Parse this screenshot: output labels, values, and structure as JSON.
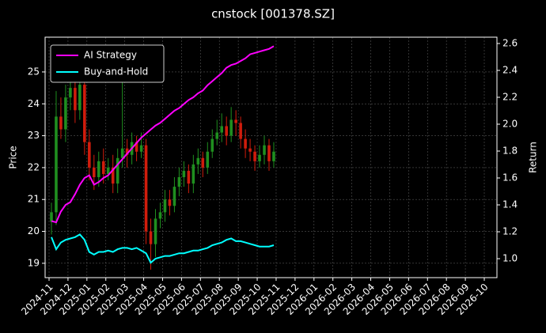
{
  "chart_data": {
    "type": "candlestick",
    "title": "cnstock [001378.SZ]",
    "ylabel": "Price",
    "y2label": "Return",
    "x": [
      "2024-11",
      "2024-12",
      "2025-01",
      "2025-02",
      "2025-03",
      "2025-04",
      "2025-05",
      "2025-06",
      "2025-07",
      "2025-08",
      "2025-09",
      "2025-10"
    ],
    "xlim": [
      "2024-11",
      "2026-10"
    ],
    "xticks": [
      "2024-11",
      "2024-12",
      "2025-01",
      "2025-02",
      "2025-03",
      "2025-04",
      "2025-05",
      "2025-06",
      "2025-07",
      "2025-08",
      "2025-09",
      "2025-10",
      "2025-11",
      "2025-12",
      "2026-01",
      "2026-02",
      "2026-03",
      "2026-04",
      "2026-05",
      "2026-06",
      "2026-07",
      "2026-08",
      "2026-09",
      "2026-10"
    ],
    "ylim": [
      18.55,
      26.09
    ],
    "yticks": [
      19,
      20,
      21,
      22,
      23,
      24,
      25
    ],
    "y2lim": [
      0.859,
      2.647
    ],
    "y2ticks": [
      {
        "value": 1,
        "label": "1.0"
      },
      1.2,
      1.4,
      1.6,
      1.8,
      {
        "value": 2,
        "label": "2.0"
      },
      2.2,
      2.4,
      2.6
    ],
    "grid": true,
    "legend": "upper left",
    "candles": {
      "up_color": "#1f8f1f",
      "down_color": "#d01c0c",
      "open": [
        [
          20.3,
          20.6,
          23.6,
          23.2
        ],
        [
          24.2,
          24.5,
          23.8,
          24.6
        ],
        [
          22.8,
          22.0,
          21.7,
          22.2
        ],
        [
          21.8,
          22.0,
          21.5,
          22.3
        ],
        [
          22.6,
          22.4,
          22.8,
          22.5
        ],
        [
          22.7,
          20.0,
          19.6,
          20.4
        ],
        [
          20.6,
          21.0,
          20.8,
          21.4
        ],
        [
          21.7,
          21.9,
          21.5,
          22.1
        ],
        [
          22.3,
          22.0,
          22.5,
          22.9
        ],
        [
          23.1,
          23.3,
          23.0,
          23.5
        ],
        [
          23.4,
          22.9,
          22.6,
          22.5
        ],
        [
          22.2,
          22.4,
          22.7,
          22.2
        ]
      ],
      "high": [
        [
          20.9,
          24.4,
          24.2,
          24.6
        ],
        [
          25.3,
          25.0,
          25.3,
          24.8
        ],
        [
          23.2,
          22.4,
          22.5,
          22.6
        ],
        [
          22.3,
          22.4,
          22.6,
          25.2
        ],
        [
          22.9,
          23.1,
          23.0,
          23.1
        ],
        [
          22.9,
          20.4,
          20.7,
          20.9
        ],
        [
          21.3,
          21.3,
          21.7,
          22.0
        ],
        [
          22.2,
          22.1,
          22.4,
          22.6
        ],
        [
          22.5,
          22.8,
          23.2,
          23.5
        ],
        [
          23.7,
          23.6,
          23.9,
          23.8
        ],
        [
          23.6,
          23.2,
          22.9,
          22.7
        ],
        [
          22.7,
          23.0,
          22.9,
          22.8
        ]
      ],
      "low": [
        [
          19.9,
          20.2,
          22.9,
          22.8
        ],
        [
          23.8,
          23.4,
          23.5,
          22.4
        ],
        [
          21.6,
          21.3,
          21.4,
          21.5
        ],
        [
          21.6,
          21.2,
          21.2,
          22.0
        ],
        [
          22.0,
          22.1,
          22.2,
          22.3
        ],
        [
          19.6,
          18.8,
          19.2,
          20.1
        ],
        [
          20.3,
          20.5,
          20.6,
          21.1
        ],
        [
          21.4,
          21.2,
          21.2,
          21.8
        ],
        [
          21.7,
          21.8,
          22.3,
          22.7
        ],
        [
          22.8,
          22.7,
          22.8,
          23.0
        ],
        [
          22.6,
          22.3,
          22.2,
          21.9
        ],
        [
          22.0,
          22.1,
          21.9,
          22.0
        ]
      ],
      "close": [
        [
          20.6,
          23.6,
          23.2,
          24.2
        ],
        [
          24.5,
          23.8,
          24.6,
          22.8
        ],
        [
          22.0,
          21.7,
          22.2,
          21.8
        ],
        [
          22.0,
          21.5,
          22.3,
          22.6
        ],
        [
          22.4,
          22.8,
          22.5,
          22.7
        ],
        [
          20.0,
          19.6,
          20.4,
          20.6
        ],
        [
          21.0,
          20.8,
          21.4,
          21.7
        ],
        [
          21.9,
          21.5,
          22.1,
          22.3
        ],
        [
          22.0,
          22.5,
          22.9,
          23.1
        ],
        [
          23.3,
          23.0,
          23.5,
          23.4
        ],
        [
          22.9,
          22.6,
          22.5,
          22.2
        ],
        [
          22.4,
          22.7,
          22.2,
          22.5
        ]
      ]
    },
    "series": [
      {
        "name": "AI Strategy",
        "color": "#ff00ff",
        "axis": "y2",
        "values": [
          [
            1.28,
            1.27,
            1.35,
            1.4
          ],
          [
            1.42,
            1.48,
            1.55,
            1.6
          ],
          [
            1.62,
            1.55,
            1.57,
            1.6
          ],
          [
            1.62,
            1.66,
            1.7,
            1.74
          ],
          [
            1.78,
            1.82,
            1.86,
            1.9
          ],
          [
            1.93,
            1.96,
            1.99,
            2.01
          ],
          [
            2.04,
            2.07,
            2.1,
            2.12
          ],
          [
            2.15,
            2.18,
            2.2,
            2.23
          ],
          [
            2.25,
            2.29,
            2.32,
            2.35
          ],
          [
            2.38,
            2.42,
            2.44,
            2.45
          ],
          [
            2.47,
            2.49,
            2.52,
            2.53
          ],
          [
            2.54,
            2.55,
            2.56,
            2.58
          ]
        ]
      },
      {
        "name": "Buy-and-Hold",
        "color": "#00ffff",
        "axis": "y2",
        "values": [
          [
            1.16,
            1.07,
            1.12,
            1.14
          ],
          [
            1.15,
            1.16,
            1.18,
            1.14
          ],
          [
            1.05,
            1.03,
            1.05,
            1.05
          ],
          [
            1.06,
            1.05,
            1.07,
            1.08
          ],
          [
            1.08,
            1.07,
            1.08,
            1.06
          ],
          [
            1.04,
            0.97,
            1.0,
            1.01
          ],
          [
            1.02,
            1.02,
            1.03,
            1.04
          ],
          [
            1.04,
            1.05,
            1.06,
            1.06
          ],
          [
            1.07,
            1.08,
            1.1,
            1.11
          ],
          [
            1.12,
            1.14,
            1.15,
            1.13
          ],
          [
            1.13,
            1.12,
            1.11,
            1.1
          ],
          [
            1.09,
            1.09,
            1.09,
            1.1
          ]
        ]
      }
    ]
  }
}
